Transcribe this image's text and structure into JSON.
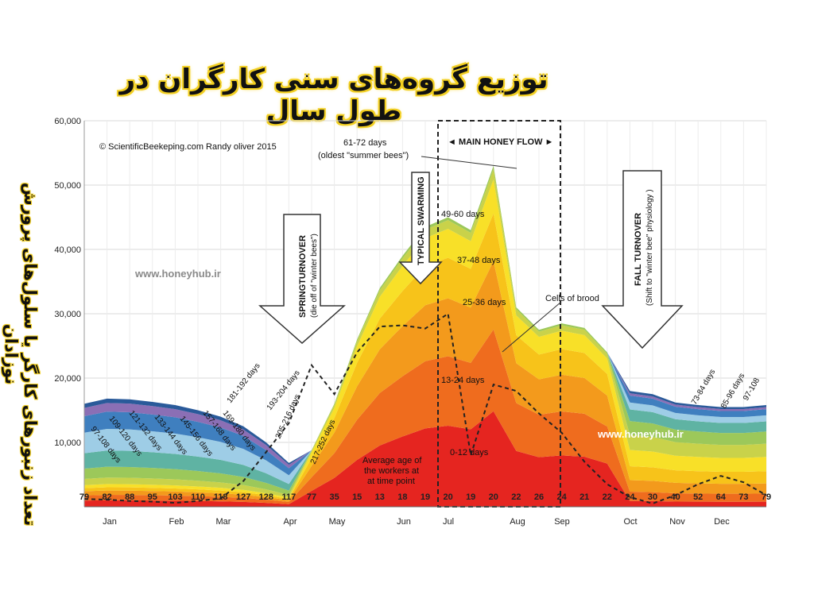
{
  "header": {
    "title": "توزیع گروه‌های سنی کارگران در طول سال",
    "side_label": "تعداد زنبورهای کارگر یا سلول‌های پرورش نوزادان"
  },
  "credit": "© ScientificBeekeping.com Randy oliver 2015",
  "watermarks": [
    "www.honeyhub.ir",
    "www.honeyhub.ir"
  ],
  "annotations": {
    "main_flow": "◄ MAIN HONEY FLOW ►",
    "oldest_line1": "61-72 days",
    "oldest_line2": "(oldest \"summer bees\")",
    "swarming": "TYPICAL SWARMING",
    "spring_line1": "SPRINGTURNOVER",
    "spring_line2": "(die off of \"winter bees\")",
    "fall_line1": "FALL TURNOVER",
    "fall_line2": "(Shift to \"winter bee\" physiology )",
    "brood": "Cells of brood",
    "avg_line1": "Average age of",
    "avg_line2": "the workers at",
    "avg_line3": "at time point"
  },
  "band_labels": {
    "b1": "0-12 days",
    "b2": "13-24 days",
    "b3": "25-36 days",
    "b4": "37-48 days",
    "b5": "49-60 days",
    "w1": "97-108 days",
    "w2": "109-120 days",
    "w3": "121-132 days",
    "w4": "133-144 days",
    "w5": "145-156 days",
    "w6": "157-168 days",
    "w7": "169-180 days",
    "w8": "181-192 days",
    "w9": "193-204 days",
    "w10": "205-216 days",
    "w11": "217-252 days",
    "f1": "73-84 days",
    "f2": "85-96 days",
    "f3": "97-108"
  },
  "chart_data": {
    "type": "area",
    "title": "",
    "xlabel": "",
    "ylabel": "تعداد زنبورهای کارگر یا سلول‌های پرورش نوزادان",
    "ylim": [
      0,
      60000
    ],
    "yticks": [
      "60,000",
      "50,000",
      "40,000",
      "30,000",
      "20,000",
      "10,000"
    ],
    "months": [
      "Jan",
      "Feb",
      "Mar",
      "Apr",
      "May",
      "Jun",
      "Jul",
      "Aug",
      "Sep",
      "Oct",
      "Nov",
      "Dec"
    ],
    "x_weeks": [
      0,
      1,
      2,
      3,
      4,
      5,
      6,
      7,
      8,
      9,
      10,
      11,
      12,
      13,
      14,
      15,
      16,
      17,
      18,
      19,
      20,
      21,
      22,
      23,
      24,
      25,
      26,
      27,
      28,
      29,
      30
    ],
    "average_age_labels": [
      "79",
      "82",
      "88",
      "95",
      "103",
      "110",
      "118",
      "127",
      "128",
      "117",
      "77",
      "35",
      "15",
      "13",
      "18",
      "19",
      "20",
      "19",
      "20",
      "22",
      "26",
      "24",
      "21",
      "22",
      "24",
      "30",
      "40",
      "52",
      "64",
      "73",
      "79"
    ],
    "series_total_workers": [
      16000,
      16800,
      16700,
      16300,
      15800,
      15000,
      14000,
      12500,
      10000,
      6800,
      8800,
      16000,
      26000,
      34000,
      39000,
      43500,
      45000,
      43000,
      53000,
      31000,
      27500,
      28500,
      27800,
      24000,
      18000,
      17500,
      16200,
      15800,
      15500,
      15500,
      15800
    ],
    "series_brood_cells": [
      1200,
      1100,
      900,
      800,
      600,
      900,
      1300,
      4000,
      8500,
      13000,
      22000,
      17500,
      24000,
      28000,
      28200,
      27700,
      30000,
      8000,
      19000,
      18000,
      14500,
      11500,
      7000,
      3500,
      1500,
      500,
      1800,
      3500,
      4800,
      3800,
      1800
    ]
  },
  "colors": {
    "b1": "#e52520",
    "b2": "#ef6c1e",
    "b3": "#f39a1c",
    "b4": "#f7c31a",
    "b5": "#f8e028",
    "olive": "#c9d24a",
    "green": "#9cc85a",
    "teal": "#5fb3a3",
    "blue": "#3f7fbf",
    "darkblue": "#2a5a9a",
    "lightblue": "#9ecde6",
    "purple": "#8b6fb5",
    "lavender": "#b6a6d4",
    "grey": "#bdbdbd"
  }
}
